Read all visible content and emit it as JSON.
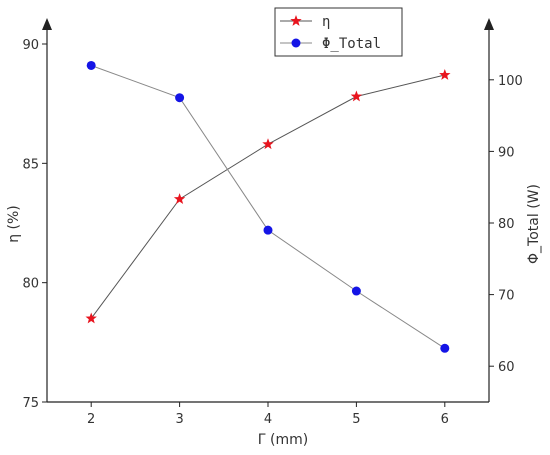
{
  "chart_data": {
    "type": "line",
    "x": [
      2,
      3,
      4,
      5,
      6
    ],
    "xlabel": "Γ (mm)",
    "xlim": [
      1.5,
      6.5
    ],
    "x_ticks": [
      2,
      3,
      4,
      5,
      6
    ],
    "y_left": {
      "label": "η (%)",
      "range": [
        75,
        90
      ],
      "ticks": [
        75,
        80,
        85,
        90
      ]
    },
    "y_right": {
      "label": "Φ_Total (W)",
      "range": [
        55,
        105
      ],
      "ticks": [
        60,
        70,
        80,
        90,
        100
      ]
    },
    "series": [
      {
        "name": "η",
        "axis": "left",
        "marker": "star",
        "marker_color": "#e8141e",
        "line_color": "#555555",
        "values": [
          78.5,
          83.5,
          85.8,
          87.8,
          88.7
        ]
      },
      {
        "name": "Φ_Total",
        "axis": "right",
        "marker": "circle",
        "marker_color": "#1414e6",
        "line_color": "#888888",
        "values": [
          102,
          97.5,
          79,
          70.5,
          62.5
        ]
      }
    ],
    "legend": "top-center",
    "grid": false
  }
}
